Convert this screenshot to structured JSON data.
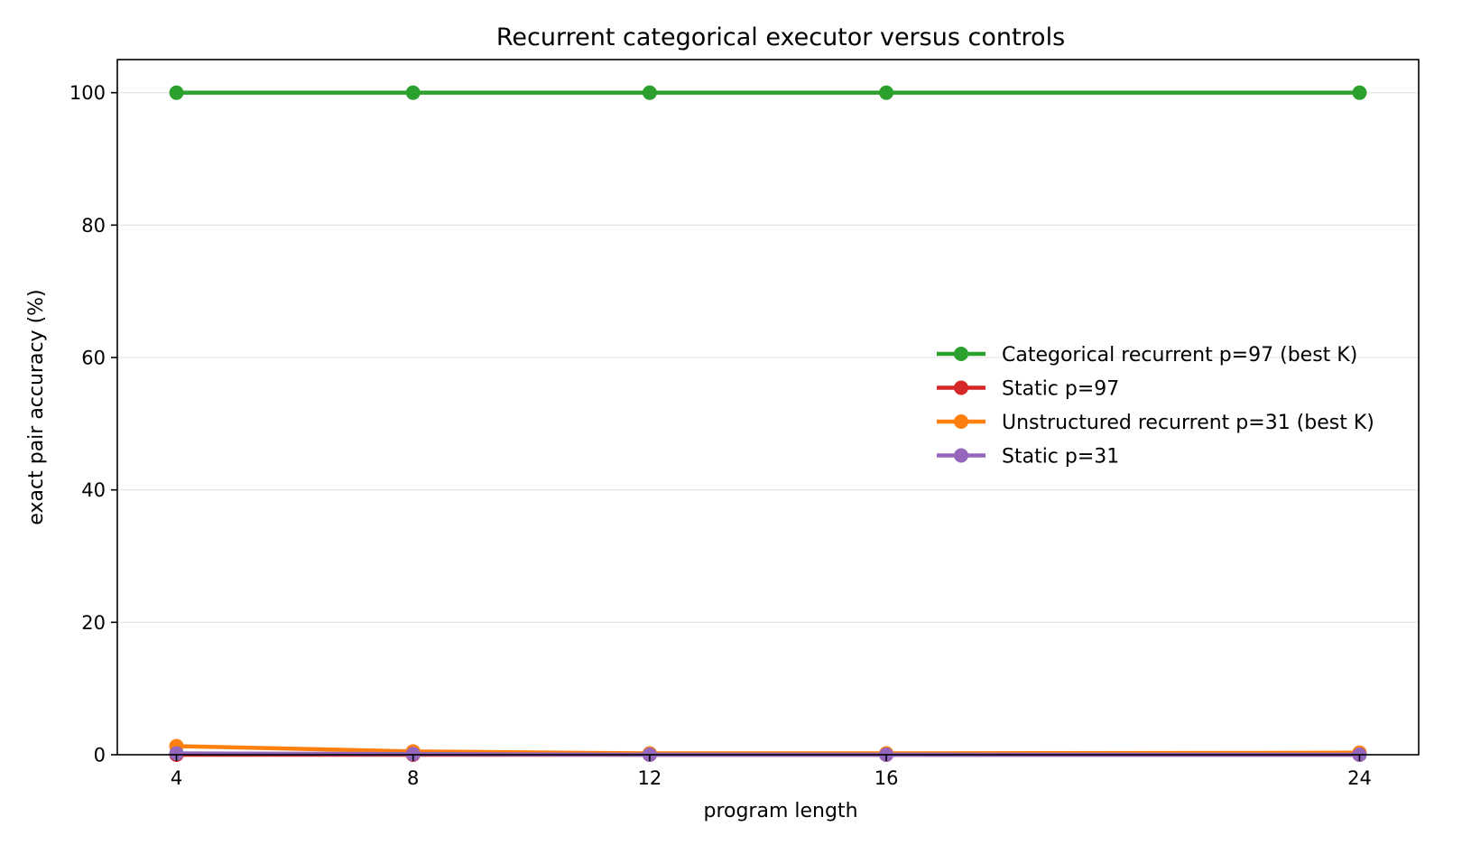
{
  "chart_data": {
    "type": "line",
    "title": "Recurrent categorical executor versus controls",
    "xlabel": "program length",
    "ylabel": "exact pair accuracy (%)",
    "x": [
      4,
      8,
      12,
      16,
      24
    ],
    "x_ticks": [
      "4",
      "8",
      "12",
      "16",
      "24"
    ],
    "xlim": [
      3,
      25
    ],
    "ylim": [
      0,
      105
    ],
    "y_ticks": [
      "0",
      "20",
      "40",
      "60",
      "80",
      "100"
    ],
    "grid": "horizontal",
    "legend_position": "center-right",
    "series": [
      {
        "name": "Categorical recurrent p=97 (best K)",
        "color": "#2ca02c",
        "values": [
          100,
          100,
          100,
          100,
          100
        ]
      },
      {
        "name": "Static p=97",
        "color": "#d62728",
        "values": [
          0.0,
          0.0,
          0.0,
          0.0,
          0.0
        ]
      },
      {
        "name": "Unstructured recurrent p=31 (best K)",
        "color": "#ff7f0e",
        "values": [
          1.3,
          0.5,
          0.2,
          0.2,
          0.3
        ]
      },
      {
        "name": "Static p=31",
        "color": "#9467bd",
        "values": [
          0.2,
          0.1,
          0.0,
          0.0,
          0.0
        ]
      }
    ]
  }
}
